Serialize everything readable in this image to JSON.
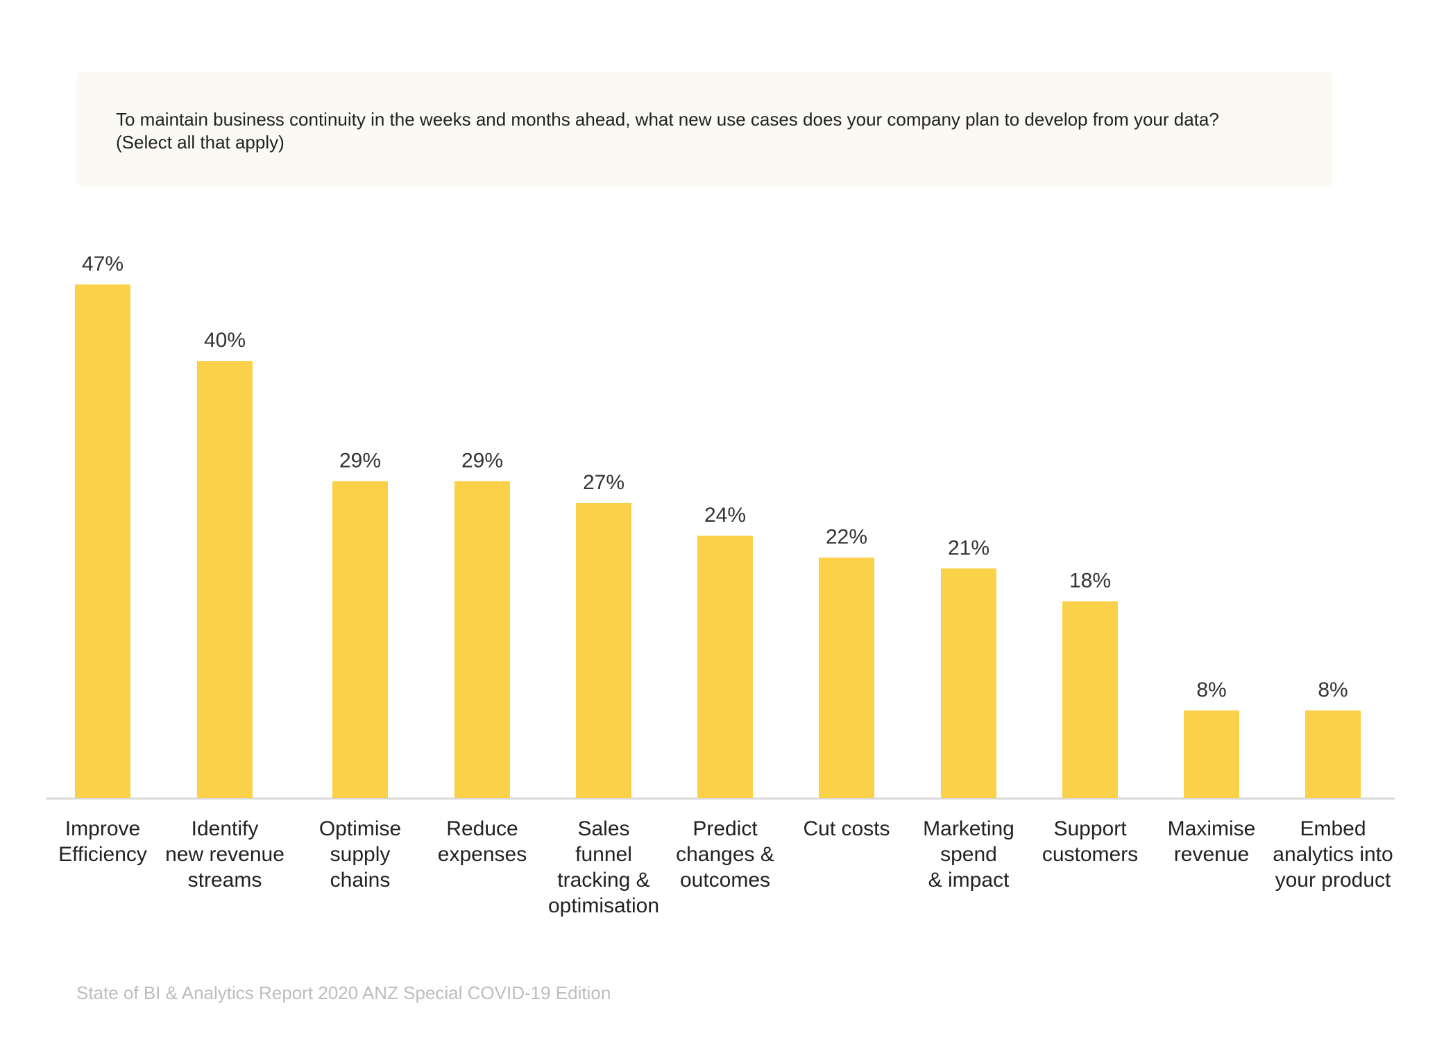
{
  "question": {
    "line1": "To maintain business continuity in the weeks and months ahead, what new use cases does your company plan to develop from your data?",
    "line2": "(Select all that apply)"
  },
  "source": "State of BI & Analytics Report 2020 ANZ Special COVID-19 Edition",
  "colors": {
    "bar": "#fad148",
    "axis": "#d9d9d9",
    "box": "#faf9f4"
  },
  "chart_data": {
    "type": "bar",
    "title": "To maintain business continuity in the weeks and months ahead, what new use cases does your company plan to develop from your data? (Select all that apply)",
    "xlabel": "",
    "ylabel": "",
    "ylim": [
      0,
      47
    ],
    "grid": false,
    "categories": [
      [
        "Improve",
        "Efficiency"
      ],
      [
        "Identify",
        "new revenue",
        "streams"
      ],
      [
        "Optimise",
        "supply",
        "chains"
      ],
      [
        "Reduce",
        "expenses"
      ],
      [
        "Sales",
        "funnel",
        "tracking &",
        "optimisation"
      ],
      [
        "Predict",
        "changes &",
        "outcomes"
      ],
      [
        "Cut costs"
      ],
      [
        "Marketing",
        "spend",
        "& impact"
      ],
      [
        "Support",
        "customers"
      ],
      [
        "Maximise",
        "revenue"
      ],
      [
        "Embed",
        "analytics into",
        "your product"
      ]
    ],
    "values": [
      47,
      40,
      29,
      29,
      27,
      24,
      22,
      21,
      18,
      8,
      8
    ],
    "value_labels": [
      "47%",
      "40%",
      "29%",
      "29%",
      "27%",
      "24%",
      "22%",
      "21%",
      "18%",
      "8%",
      "8%"
    ]
  }
}
